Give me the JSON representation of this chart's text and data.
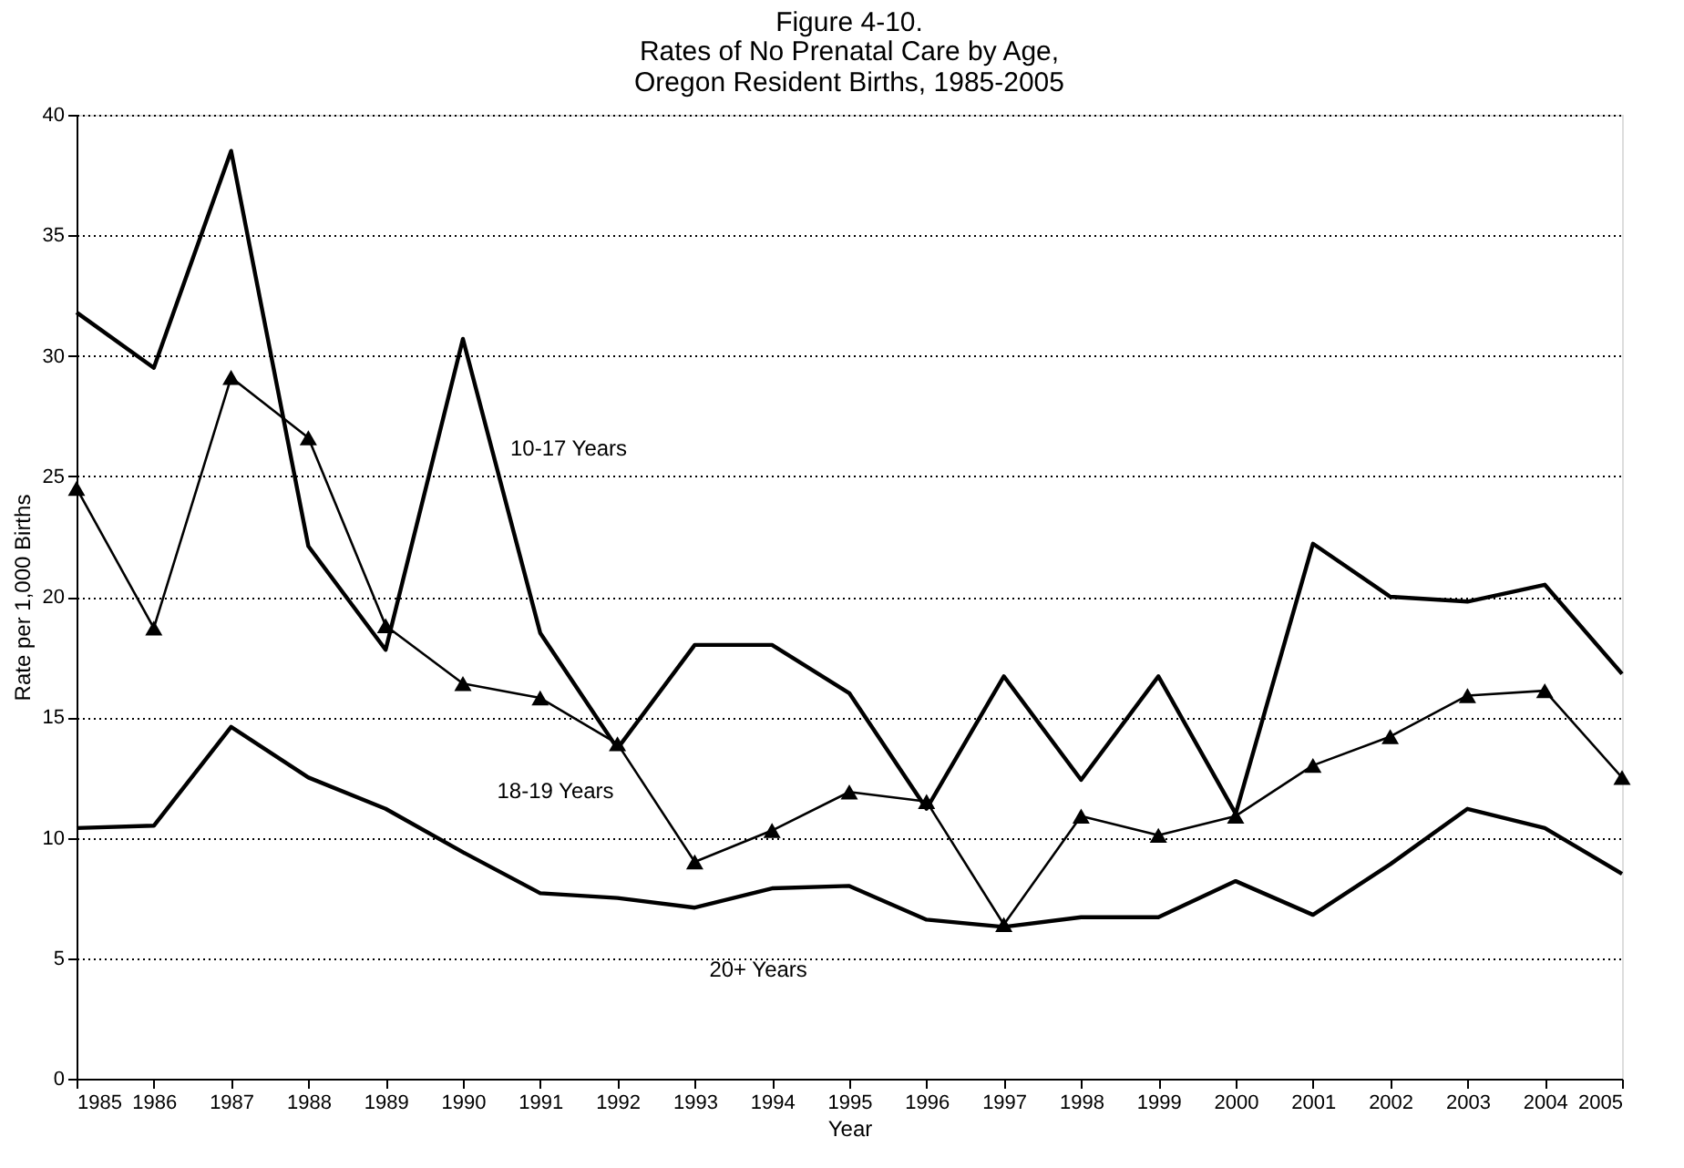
{
  "chart_data": {
    "type": "line",
    "title": "Figure 4-10.",
    "subtitle": "Rates of No Prenatal Care by Age,\nOregon Resident Births, 1985-2005",
    "xlabel": "Year",
    "ylabel": "Rate per 1,000 Births",
    "x": [
      1985,
      1986,
      1987,
      1988,
      1989,
      1990,
      1991,
      1992,
      1993,
      1994,
      1995,
      1996,
      1997,
      1998,
      1999,
      2000,
      2001,
      2002,
      2003,
      2004,
      2005
    ],
    "series": [
      {
        "name": "10-17 Years",
        "color": "#000000",
        "marker": "none",
        "values": [
          31.8,
          29.5,
          38.5,
          22.1,
          17.8,
          30.7,
          18.5,
          13.7,
          18.0,
          18.0,
          16.0,
          11.2,
          16.7,
          12.4,
          16.7,
          11.0,
          22.2,
          20.0,
          19.8,
          20.5,
          16.8
        ]
      },
      {
        "name": "18-19 Years",
        "color": "#000000",
        "marker": "triangle",
        "values": [
          24.5,
          18.7,
          29.1,
          26.6,
          18.8,
          16.4,
          15.8,
          13.9,
          9.0,
          10.3,
          11.9,
          11.5,
          6.4,
          10.9,
          10.1,
          10.9,
          13.0,
          14.2,
          15.9,
          16.1,
          12.5
        ]
      },
      {
        "name": "20+ Years",
        "color": "#000000",
        "marker": "none",
        "values": [
          10.4,
          10.5,
          14.6,
          12.5,
          11.2,
          9.4,
          7.7,
          7.5,
          7.1,
          7.9,
          8.0,
          6.6,
          6.3,
          6.7,
          6.7,
          8.2,
          6.8,
          8.9,
          11.2,
          10.4,
          8.5
        ]
      }
    ],
    "xlim": [
      1985,
      2005
    ],
    "xticks": [
      1985,
      1986,
      1987,
      1988,
      1989,
      1990,
      1991,
      1992,
      1993,
      1994,
      1995,
      1996,
      1997,
      1998,
      1999,
      2000,
      2001,
      2002,
      2003,
      2004,
      2005
    ],
    "ylim": [
      0,
      40
    ],
    "yticks": [
      0,
      5,
      10,
      15,
      20,
      25,
      30,
      35,
      40
    ],
    "grid": "y",
    "legend": false,
    "line_style": "solid"
  }
}
